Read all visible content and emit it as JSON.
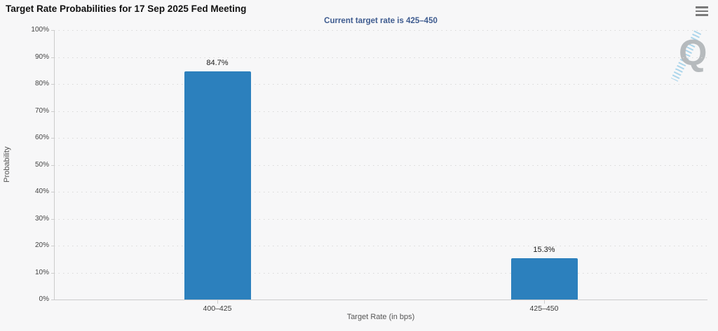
{
  "header": {
    "title": "Target Rate Probabilities for 17 Sep 2025 Fed Meeting",
    "menu_icon": "hamburger-icon"
  },
  "chart_data": {
    "type": "bar",
    "title": "Target Rate Probabilities for 17 Sep 2025 Fed Meeting",
    "subtitle": "Current target rate is 425–450",
    "categories": [
      "400–425",
      "425–450"
    ],
    "values": [
      84.7,
      15.3
    ],
    "value_labels": [
      "84.7%",
      "15.3%"
    ],
    "xlabel": "Target Rate (in bps)",
    "ylabel": "Probability",
    "ylim": [
      0,
      100
    ],
    "ytick_step": 10,
    "ytick_labels": [
      "0%",
      "10%",
      "20%",
      "30%",
      "40%",
      "50%",
      "60%",
      "70%",
      "80%",
      "90%",
      "100%"
    ],
    "grid": "horizontal-dotted",
    "legend_position": "none",
    "bar_color": "#2c80bd"
  },
  "colors": {
    "background": "#f7f7f8",
    "bar": "#2c80bd",
    "subtitle_text": "#3e5b8f",
    "grid_dots": "#d9d9d9",
    "axis_line": "#cccccc",
    "watermark_gray": "#b6babd",
    "watermark_blue": "#a5d2ea"
  },
  "watermark": {
    "letter": "Q"
  }
}
